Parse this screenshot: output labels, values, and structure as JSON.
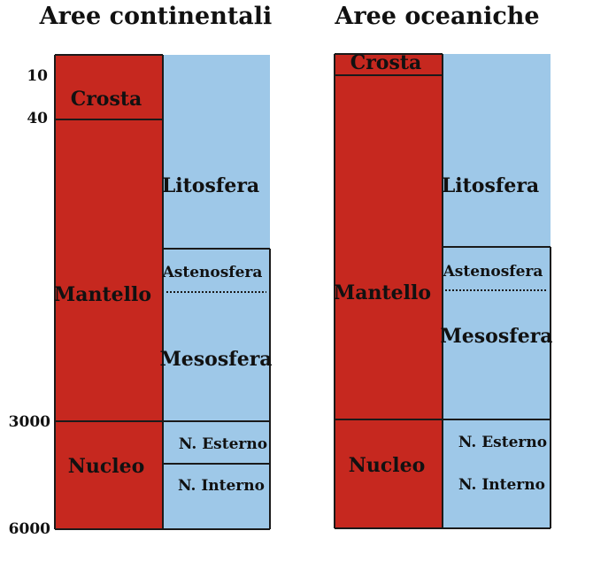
{
  "titles": {
    "continental": "Aree continentali",
    "oceanic": "Aree oceaniche"
  },
  "depth_labels": [
    "10",
    "40",
    "3000",
    "6000"
  ],
  "continental": {
    "left": {
      "crosta": "Crosta",
      "mantello": "Mantello",
      "nucleo": "Nucleo"
    },
    "right": {
      "litosfera": "Litosfera",
      "astenosfera": "Astenosfera",
      "mesosfera": "Mesosfera",
      "n_esterno": "N. Esterno",
      "n_interno": "N. Interno"
    }
  },
  "oceanic": {
    "left": {
      "crosta": "Crosta",
      "mantello": "Mantello",
      "nucleo": "Nucleo"
    },
    "right": {
      "litosfera": "Litosfera",
      "astenosfera": "Astenosfera",
      "mesosfera": "Mesosfera",
      "n_esterno": "N. Esterno",
      "n_interno": "N. Interno"
    }
  },
  "colors": {
    "chemical_layers": "#c6281f",
    "mechanical_layers": "#9ec8e8",
    "lines": "#1a1a1a"
  }
}
